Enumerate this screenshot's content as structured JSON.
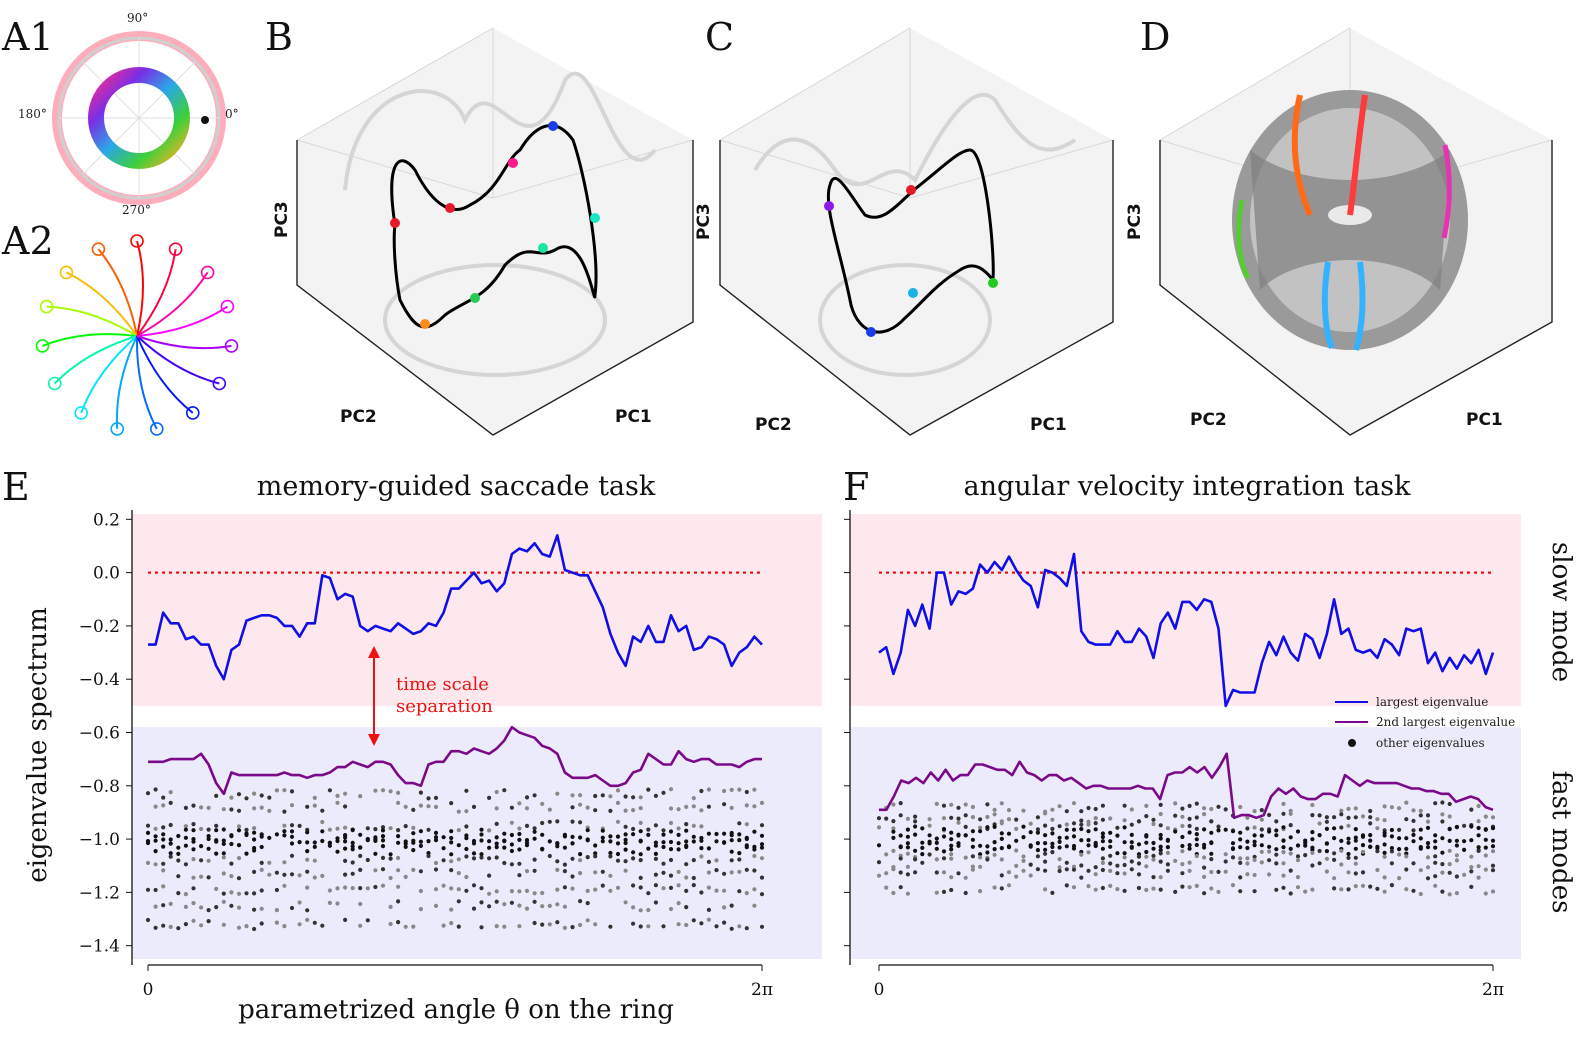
{
  "panels": {
    "a1": "A1",
    "a2": "A2",
    "b": "B",
    "c": "C",
    "d": "D",
    "e": "E",
    "f": "F"
  },
  "polar_labels": {
    "deg90": "90°",
    "deg180": "180°",
    "deg270": "270°",
    "deg0": "0°"
  },
  "pc_axes": {
    "b": {
      "pc1": "PC1",
      "pc2": "PC2",
      "pc3": "PC3"
    },
    "c": {
      "pc1": "PC1",
      "pc2": "PC2",
      "pc3": "PC3"
    },
    "d": {
      "pc1": "PC1",
      "pc2": "PC2",
      "pc3": "PC3"
    }
  },
  "side_labels": {
    "slow": "slow mode",
    "fast": "fast modes"
  },
  "annotation": {
    "line1": "time scale",
    "line2": "separation"
  },
  "legend": {
    "largest": "largest eigenvalue",
    "second": "2nd largest eigenvalue",
    "other": "other eigenvalues"
  },
  "colors": {
    "largest": "#1010e6",
    "second": "#7a0a8a",
    "other": "#111111",
    "zero_line": "#ee1111",
    "slow_band": "#fde8ee",
    "fast_band": "#ecebfb"
  },
  "chart_data": [
    {
      "type": "line",
      "title": "memory-guided saccade task",
      "xlabel": "parametrized angle θ on the ring",
      "ylabel": "eigenvalue spectrum",
      "x_range": [
        0,
        6.2832
      ],
      "x_ticks": [
        "0",
        "2π"
      ],
      "y_ticks": [
        "0.2",
        "0.0",
        "−0.2",
        "−0.4",
        "−0.6",
        "−0.8",
        "−1.0",
        "−1.2",
        "−1.4"
      ],
      "ylim": [
        -1.45,
        0.22
      ],
      "reference_line": 0.0,
      "series": [
        {
          "name": "largest eigenvalue",
          "values": [
            -0.27,
            -0.27,
            -0.15,
            -0.19,
            -0.19,
            -0.25,
            -0.24,
            -0.27,
            -0.27,
            -0.35,
            -0.4,
            -0.29,
            -0.27,
            -0.18,
            -0.17,
            -0.16,
            -0.16,
            -0.17,
            -0.2,
            -0.2,
            -0.24,
            -0.19,
            -0.19,
            -0.01,
            -0.02,
            -0.1,
            -0.08,
            -0.09,
            -0.2,
            -0.22,
            -0.2,
            -0.21,
            -0.22,
            -0.19,
            -0.21,
            -0.23,
            -0.22,
            -0.19,
            -0.2,
            -0.15,
            -0.06,
            -0.06,
            -0.03,
            0.0,
            -0.04,
            -0.03,
            -0.07,
            -0.04,
            0.07,
            0.09,
            0.08,
            0.11,
            0.07,
            0.06,
            0.14,
            0.01,
            0.0,
            -0.01,
            -0.01,
            -0.07,
            -0.13,
            -0.23,
            -0.3,
            -0.35,
            -0.24,
            -0.26,
            -0.2,
            -0.26,
            -0.26,
            -0.16,
            -0.22,
            -0.2,
            -0.29,
            -0.28,
            -0.24,
            -0.25,
            -0.27,
            -0.35,
            -0.3,
            -0.28,
            -0.24,
            -0.27
          ]
        },
        {
          "name": "2nd largest eigenvalue",
          "values": [
            -0.71,
            -0.71,
            -0.71,
            -0.7,
            -0.7,
            -0.7,
            -0.7,
            -0.68,
            -0.72,
            -0.79,
            -0.83,
            -0.75,
            -0.76,
            -0.76,
            -0.76,
            -0.76,
            -0.76,
            -0.76,
            -0.75,
            -0.76,
            -0.76,
            -0.77,
            -0.76,
            -0.76,
            -0.75,
            -0.73,
            -0.73,
            -0.71,
            -0.72,
            -0.73,
            -0.71,
            -0.71,
            -0.72,
            -0.76,
            -0.79,
            -0.79,
            -0.8,
            -0.72,
            -0.71,
            -0.71,
            -0.67,
            -0.67,
            -0.68,
            -0.66,
            -0.67,
            -0.68,
            -0.66,
            -0.63,
            -0.58,
            -0.6,
            -0.61,
            -0.62,
            -0.65,
            -0.66,
            -0.68,
            -0.75,
            -0.77,
            -0.77,
            -0.77,
            -0.76,
            -0.78,
            -0.8,
            -0.8,
            -0.79,
            -0.75,
            -0.74,
            -0.68,
            -0.7,
            -0.72,
            -0.72,
            -0.67,
            -0.7,
            -0.71,
            -0.7,
            -0.7,
            -0.72,
            -0.72,
            -0.72,
            -0.73,
            -0.71,
            -0.7,
            -0.7
          ]
        }
      ],
      "other_eigenvalue_levels": [
        -0.83,
        -0.88,
        -0.95,
        -0.98,
        -1.0,
        -1.02,
        -1.04,
        -1.08,
        -1.13,
        -1.19,
        -1.25,
        -1.32
      ]
    },
    {
      "type": "line",
      "title": "angular velocity integration task",
      "x_range": [
        0,
        6.2832
      ],
      "x_ticks": [
        "0",
        "2π"
      ],
      "ylim": [
        -1.45,
        0.22
      ],
      "reference_line": 0.0,
      "series": [
        {
          "name": "largest eigenvalue",
          "values": [
            -0.3,
            -0.28,
            -0.38,
            -0.3,
            -0.14,
            -0.2,
            -0.12,
            -0.21,
            0.0,
            0.0,
            -0.12,
            -0.07,
            -0.08,
            -0.06,
            0.03,
            0.0,
            0.04,
            0.01,
            0.06,
            0.01,
            -0.03,
            -0.05,
            -0.13,
            0.01,
            0.0,
            -0.02,
            -0.05,
            0.07,
            -0.22,
            -0.26,
            -0.27,
            -0.27,
            -0.27,
            -0.22,
            -0.26,
            -0.26,
            -0.21,
            -0.24,
            -0.32,
            -0.19,
            -0.15,
            -0.21,
            -0.11,
            -0.11,
            -0.14,
            -0.1,
            -0.11,
            -0.21,
            -0.5,
            -0.44,
            -0.45,
            -0.45,
            -0.45,
            -0.34,
            -0.26,
            -0.31,
            -0.24,
            -0.3,
            -0.33,
            -0.23,
            -0.25,
            -0.32,
            -0.23,
            -0.1,
            -0.23,
            -0.21,
            -0.29,
            -0.3,
            -0.29,
            -0.32,
            -0.25,
            -0.27,
            -0.31,
            -0.21,
            -0.22,
            -0.21,
            -0.34,
            -0.3,
            -0.37,
            -0.32,
            -0.36,
            -0.31,
            -0.34,
            -0.29,
            -0.38,
            -0.3
          ]
        },
        {
          "name": "2nd largest eigenvalue",
          "values": [
            -0.89,
            -0.89,
            -0.84,
            -0.78,
            -0.79,
            -0.77,
            -0.79,
            -0.75,
            -0.78,
            -0.74,
            -0.78,
            -0.76,
            -0.76,
            -0.72,
            -0.72,
            -0.73,
            -0.74,
            -0.74,
            -0.76,
            -0.71,
            -0.75,
            -0.76,
            -0.78,
            -0.76,
            -0.76,
            -0.78,
            -0.77,
            -0.79,
            -0.81,
            -0.8,
            -0.8,
            -0.81,
            -0.81,
            -0.81,
            -0.81,
            -0.8,
            -0.81,
            -0.81,
            -0.85,
            -0.76,
            -0.75,
            -0.75,
            -0.73,
            -0.75,
            -0.73,
            -0.77,
            -0.73,
            -0.68,
            -0.92,
            -0.91,
            -0.91,
            -0.92,
            -0.91,
            -0.84,
            -0.81,
            -0.83,
            -0.81,
            -0.84,
            -0.85,
            -0.85,
            -0.83,
            -0.83,
            -0.84,
            -0.76,
            -0.78,
            -0.8,
            -0.78,
            -0.79,
            -0.79,
            -0.79,
            -0.79,
            -0.8,
            -0.81,
            -0.81,
            -0.82,
            -0.82,
            -0.83,
            -0.83,
            -0.86,
            -0.85,
            -0.84,
            -0.85,
            -0.88,
            -0.89
          ]
        }
      ],
      "other_eigenvalue_levels": [
        -0.88,
        -0.92,
        -0.95,
        -0.97,
        -1.0,
        -1.02,
        -1.04,
        -1.06,
        -1.09,
        -1.13,
        -1.19
      ]
    }
  ]
}
